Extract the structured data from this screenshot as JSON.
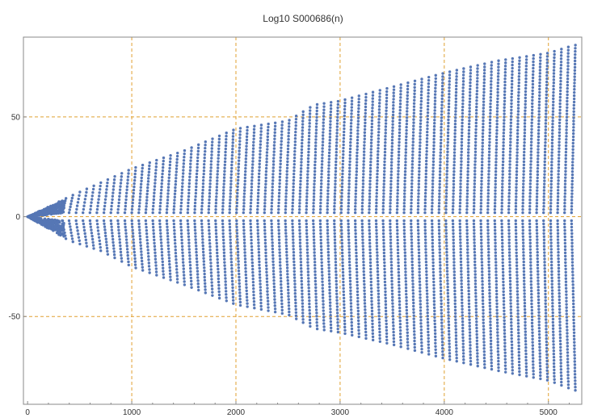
{
  "chart_data": {
    "type": "scatter",
    "title": "Log10 S000686(n)",
    "xlabel": "",
    "ylabel": "",
    "xlim": [
      -40,
      5320
    ],
    "ylim": [
      -94,
      90
    ],
    "x_ticks": [
      0,
      1000,
      2000,
      3000,
      4000,
      5000
    ],
    "y_ticks": [
      -50,
      0,
      50
    ],
    "x_tick_labels": [
      "0",
      "1000",
      "2000",
      "3000",
      "4000",
      "5000"
    ],
    "y_tick_labels": [
      "-50",
      "0",
      "50"
    ],
    "grid": true,
    "legend": "none",
    "colors": {
      "points": "#5677b5",
      "gridlines": "#e0a030",
      "axes": "#888888",
      "text": "#333333"
    },
    "point_style": "filled circles",
    "envelope": {
      "upper": [
        [
          0,
          0
        ],
        [
          400,
          10
        ],
        [
          700,
          17
        ],
        [
          1000,
          24
        ],
        [
          1500,
          33
        ],
        [
          2000,
          44
        ],
        [
          2500,
          48
        ],
        [
          2750,
          56
        ],
        [
          3000,
          58
        ],
        [
          3500,
          65
        ],
        [
          4000,
          72
        ],
        [
          4500,
          78
        ],
        [
          5000,
          82
        ],
        [
          5250,
          86
        ]
      ],
      "lower": [
        [
          0,
          0
        ],
        [
          400,
          -12
        ],
        [
          700,
          -17
        ],
        [
          1000,
          -25
        ],
        [
          1500,
          -34
        ],
        [
          2000,
          -44
        ],
        [
          2500,
          -49
        ],
        [
          2750,
          -56
        ],
        [
          3000,
          -58
        ],
        [
          3500,
          -64
        ],
        [
          4000,
          -71
        ],
        [
          4500,
          -77
        ],
        [
          5000,
          -82
        ],
        [
          5250,
          -87
        ]
      ]
    },
    "column_spacing": 67,
    "empty_band_half_width": 2,
    "structure": "vertical columns of points, symmetric above and below y = 0, column height growing with n"
  }
}
